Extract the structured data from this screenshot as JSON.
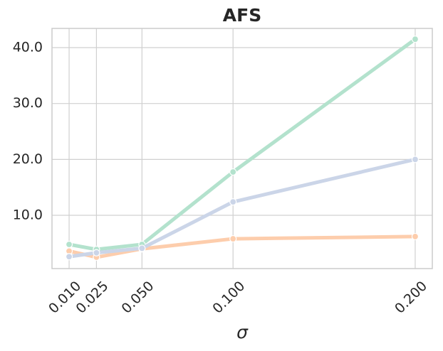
{
  "chart_data": {
    "type": "line",
    "title": "AFS",
    "x_label": "σ",
    "x": [
      0.01,
      0.025,
      0.05,
      0.1,
      0.2
    ],
    "series": [
      {
        "color": "#b3e2cd",
        "values": [
          4.79,
          3.9,
          4.8,
          17.75,
          41.5
        ]
      },
      {
        "color": "#fdcdac",
        "values": [
          3.6,
          2.5,
          4.0,
          5.8,
          6.2
        ]
      },
      {
        "color": "#cbd5e8",
        "values": [
          2.6,
          3.3,
          4.1,
          12.4,
          20.0
        ]
      }
    ],
    "xlim": [
      0.0006,
      0.2094
    ],
    "ylim": [
      0.47,
      43.43
    ],
    "xticks": [
      {
        "value": 0.01,
        "label": "0.010"
      },
      {
        "value": 0.025,
        "label": "0.025"
      },
      {
        "value": 0.05,
        "label": "0.050"
      },
      {
        "value": 0.1,
        "label": "0.100"
      },
      {
        "value": 0.2,
        "label": "0.200"
      }
    ],
    "yticks": [
      {
        "value": 10,
        "label": "10.0"
      },
      {
        "value": 20,
        "label": "20.0"
      },
      {
        "value": 30,
        "label": "30.0"
      },
      {
        "value": 40,
        "label": "40.0"
      }
    ],
    "grid": true
  }
}
